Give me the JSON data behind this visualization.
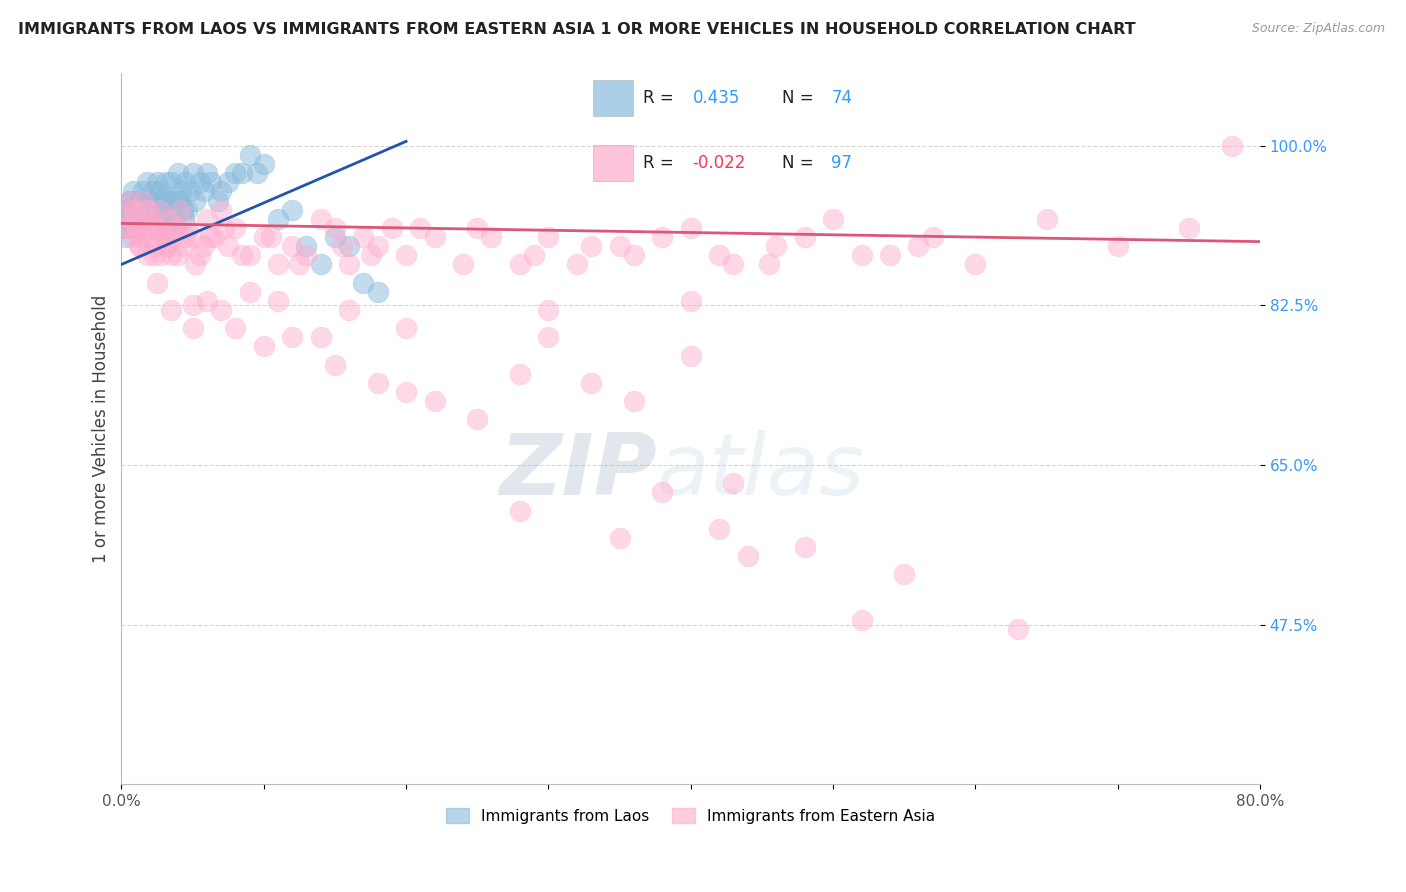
{
  "title": "IMMIGRANTS FROM LAOS VS IMMIGRANTS FROM EASTERN ASIA 1 OR MORE VEHICLES IN HOUSEHOLD CORRELATION CHART",
  "source": "Source: ZipAtlas.com",
  "ylabel": "1 or more Vehicles in Household",
  "xlim": [
    0.0,
    80.0
  ],
  "ylim": [
    30.0,
    108.0
  ],
  "yticks": [
    47.5,
    65.0,
    82.5,
    100.0
  ],
  "yticklabels": [
    "47.5%",
    "65.0%",
    "82.5%",
    "100.0%"
  ],
  "color_blue": "#88BBDD",
  "color_pink": "#FFAACC",
  "color_blue_line": "#2255AA",
  "color_pink_line": "#DD5577",
  "watermark_zip": "ZIP",
  "watermark_atlas": "atlas",
  "laos_x": [
    0.2,
    0.3,
    0.4,
    0.5,
    0.6,
    0.7,
    0.8,
    0.9,
    1.0,
    1.1,
    1.2,
    1.3,
    1.4,
    1.5,
    1.6,
    1.7,
    1.8,
    1.9,
    2.0,
    2.1,
    2.2,
    2.3,
    2.4,
    2.5,
    2.6,
    2.7,
    2.8,
    2.9,
    3.0,
    3.1,
    3.2,
    3.3,
    3.4,
    3.5,
    3.6,
    3.7,
    3.8,
    3.9,
    4.0,
    4.1,
    4.2,
    4.3,
    4.4,
    4.5,
    4.6,
    4.8,
    5.0,
    5.2,
    5.5,
    5.8,
    6.0,
    6.3,
    6.8,
    7.0,
    7.5,
    8.0,
    8.5,
    9.0,
    9.5,
    10.0,
    11.0,
    12.0,
    13.0,
    14.0,
    15.0,
    16.0,
    17.0,
    18.0,
    0.25,
    0.35,
    0.45,
    0.55,
    0.65,
    0.75
  ],
  "laos_y": [
    93,
    90,
    92,
    91,
    94,
    93,
    95,
    92,
    93,
    91,
    94,
    92,
    93,
    95,
    94,
    93,
    96,
    94,
    92,
    93,
    95,
    93,
    94,
    96,
    93,
    95,
    94,
    92,
    93,
    96,
    91,
    94,
    93,
    96,
    94,
    92,
    94,
    91,
    97,
    94,
    95,
    93,
    92,
    96,
    93,
    95,
    97,
    94,
    96,
    95,
    97,
    96,
    94,
    95,
    96,
    97,
    97,
    99,
    97,
    98,
    92,
    93,
    89,
    87,
    90,
    89,
    85,
    84,
    91,
    93,
    92,
    94,
    93,
    92
  ],
  "eastern_x": [
    0.3,
    0.5,
    0.7,
    0.9,
    1.1,
    1.3,
    1.5,
    1.7,
    1.9,
    2.1,
    2.3,
    2.5,
    2.7,
    2.9,
    3.1,
    3.3,
    3.5,
    3.7,
    3.9,
    4.1,
    4.4,
    4.7,
    5.0,
    5.5,
    6.0,
    6.5,
    7.0,
    7.5,
    8.0,
    9.0,
    10.0,
    11.0,
    12.0,
    13.0,
    14.0,
    15.0,
    16.0,
    17.0,
    18.0,
    19.0,
    20.0,
    22.0,
    25.0,
    28.0,
    30.0,
    33.0,
    36.0,
    40.0,
    43.0,
    46.0,
    50.0,
    54.0,
    57.0,
    60.0,
    65.0,
    70.0,
    75.0,
    78.0,
    0.4,
    0.6,
    0.8,
    1.0,
    1.2,
    1.4,
    1.6,
    1.8,
    2.0,
    2.2,
    2.4,
    2.6,
    2.8,
    3.0,
    3.2,
    3.6,
    4.0,
    4.5,
    5.2,
    5.8,
    6.2,
    7.2,
    8.5,
    10.5,
    12.5,
    15.5,
    17.5,
    21.0,
    24.0,
    26.0,
    29.0,
    32.0,
    35.0,
    38.0,
    42.0,
    45.5,
    48.0,
    52.0,
    56.0
  ],
  "eastern_y": [
    91,
    94,
    92,
    93,
    91,
    89,
    94,
    90,
    93,
    92,
    88,
    91,
    93,
    90,
    89,
    92,
    88,
    90,
    91,
    93,
    89,
    91,
    90,
    88,
    92,
    90,
    93,
    89,
    91,
    88,
    90,
    87,
    89,
    88,
    92,
    91,
    87,
    90,
    89,
    91,
    88,
    90,
    91,
    87,
    90,
    89,
    88,
    91,
    87,
    89,
    92,
    88,
    90,
    87,
    92,
    89,
    91,
    100,
    91,
    93,
    90,
    92,
    89,
    90,
    93,
    88,
    91,
    90,
    89,
    91,
    88,
    90,
    89,
    91,
    88,
    90,
    87,
    89,
    90,
    91,
    88,
    90,
    87,
    89,
    88,
    91,
    87,
    90,
    88,
    87,
    89,
    90,
    88,
    87,
    90,
    88,
    89
  ],
  "eastern_x_outliers": [
    5.0,
    8.0,
    10.0,
    12.0,
    15.0,
    18.0,
    20.0,
    22.0,
    25.0,
    28.0,
    30.0,
    33.0,
    36.0,
    40.0,
    43.0,
    28.0,
    35.0,
    44.0,
    52.0,
    63.0,
    38.0,
    42.0,
    48.0,
    55.0
  ],
  "eastern_y_outliers": [
    82.5,
    80,
    78,
    79,
    76,
    74,
    73,
    72,
    70,
    75,
    79,
    74,
    72,
    77,
    63,
    60,
    57,
    55,
    48,
    47,
    62,
    58,
    56,
    53
  ],
  "eastern_x_low": [
    2.5,
    3.5,
    5.0,
    6.0,
    7.0,
    9.0,
    11.0,
    14.0,
    16.0,
    20.0,
    30.0,
    40.0
  ],
  "eastern_y_low": [
    85,
    82,
    80,
    83,
    82,
    84,
    83,
    79,
    82,
    80,
    82,
    83
  ]
}
